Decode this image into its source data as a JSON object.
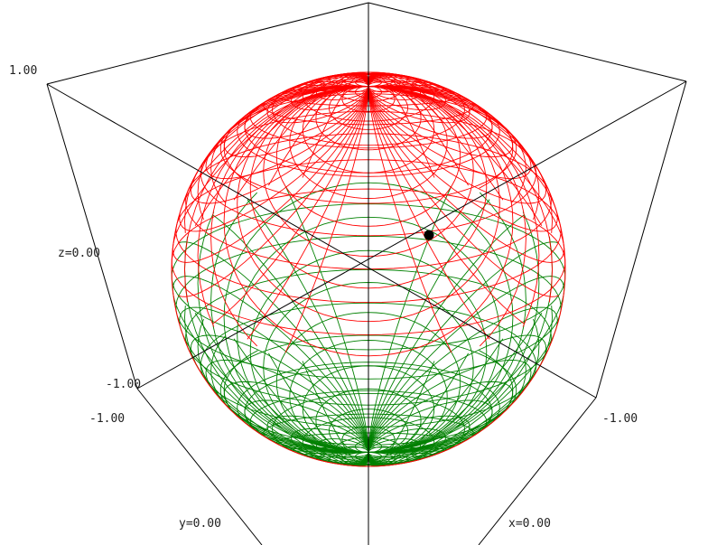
{
  "labels": {
    "z_max": "1.00",
    "z_mid": "z=0.00",
    "z_min": "-1.00",
    "y_min": "-1.00",
    "y_mid": "y=0.00",
    "x_min": "-1.00",
    "x_mid": "x=0.00"
  },
  "colors": {
    "upper_mesh": "#ff0000",
    "lower_mesh": "#008000",
    "box_lines": "#000000",
    "marker": "#000000"
  }
}
